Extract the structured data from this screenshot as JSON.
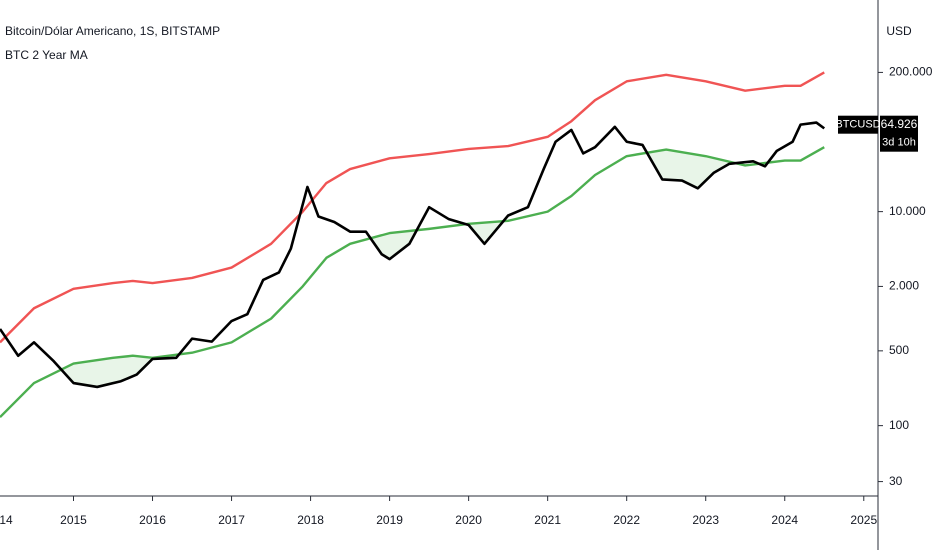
{
  "chart_data": {
    "type": "line",
    "title": "Bitcoin/Dólar Americano, 1S, BITSTAMP",
    "subtitle": "BTC 2 Year MA",
    "currency": "USD",
    "log_scale": true,
    "xlim": [
      2014.07,
      2025.18
    ],
    "xticks": [
      {
        "value": 2014,
        "label": "14"
      },
      2015,
      2016,
      2017,
      2018,
      2019,
      2020,
      2021,
      2022,
      2023,
      2024,
      2025
    ],
    "ylim": [
      22,
      950000
    ],
    "yticks": [
      {
        "value": 200000,
        "label": "200.000"
      },
      {
        "value": 10000,
        "label": "10.000"
      },
      {
        "value": 2000,
        "label": "2.000"
      },
      500,
      100,
      30
    ],
    "last_price": {
      "value": 64926,
      "label": "64.926"
    },
    "countdown": "3d 10h",
    "fill_color": "#4caf50",
    "series": [
      {
        "name": "BTCUSD",
        "color": "#000000",
        "x": [
          2014.07,
          2014.3,
          2014.5,
          2014.75,
          2015.0,
          2015.3,
          2015.6,
          2015.8,
          2016.0,
          2016.3,
          2016.5,
          2016.75,
          2017.0,
          2017.2,
          2017.4,
          2017.6,
          2017.75,
          2017.96,
          2018.1,
          2018.3,
          2018.5,
          2018.7,
          2018.9,
          2019.0,
          2019.25,
          2019.5,
          2019.75,
          2020.0,
          2020.2,
          2020.5,
          2020.75,
          2020.95,
          2021.1,
          2021.3,
          2021.45,
          2021.6,
          2021.85,
          2022.0,
          2022.2,
          2022.45,
          2022.7,
          2022.9,
          2023.1,
          2023.3,
          2023.6,
          2023.75,
          2023.9,
          2024.1,
          2024.2,
          2024.4,
          2024.5
        ],
        "values": [
          800,
          450,
          600,
          400,
          250,
          230,
          260,
          300,
          420,
          430,
          650,
          610,
          950,
          1100,
          2300,
          2700,
          4500,
          17000,
          9000,
          8000,
          6500,
          6500,
          4000,
          3600,
          5000,
          11000,
          8500,
          7500,
          5000,
          9200,
          11000,
          25000,
          45000,
          58000,
          35000,
          40000,
          62000,
          45000,
          42000,
          20000,
          19500,
          16500,
          23000,
          28000,
          29500,
          26500,
          37000,
          45000,
          65000,
          68000,
          60000
        ]
      },
      {
        "color": "#f05454",
        "x": [
          2014.07,
          2014.5,
          2015.0,
          2015.5,
          2015.75,
          2016.0,
          2016.5,
          2017.0,
          2017.5,
          2017.9,
          2018.2,
          2018.5,
          2019.0,
          2019.5,
          2020.0,
          2020.5,
          2021.0,
          2021.3,
          2021.6,
          2022.0,
          2022.5,
          2023.0,
          2023.5,
          2024.0,
          2024.2,
          2024.5
        ],
        "values": [
          600,
          1250,
          1900,
          2150,
          2250,
          2150,
          2400,
          3000,
          5000,
          10000,
          18500,
          25000,
          31500,
          34500,
          38500,
          41000,
          50000,
          70000,
          110000,
          165000,
          190000,
          165000,
          135000,
          150000,
          150000,
          200000
        ]
      },
      {
        "color": "#4caf50",
        "x": [
          2014.07,
          2014.5,
          2015.0,
          2015.5,
          2015.75,
          2016.0,
          2016.5,
          2017.0,
          2017.5,
          2017.9,
          2018.2,
          2018.5,
          2019.0,
          2019.5,
          2020.0,
          2020.5,
          2021.0,
          2021.3,
          2021.6,
          2022.0,
          2022.5,
          2023.0,
          2023.5,
          2024.0,
          2024.2,
          2024.5
        ],
        "values": [
          120,
          250,
          380,
          430,
          450,
          430,
          480,
          600,
          1000,
          2000,
          3700,
          5000,
          6300,
          6900,
          7700,
          8200,
          10000,
          14000,
          22000,
          33000,
          38000,
          33000,
          27000,
          30000,
          30000,
          40000
        ]
      }
    ]
  }
}
